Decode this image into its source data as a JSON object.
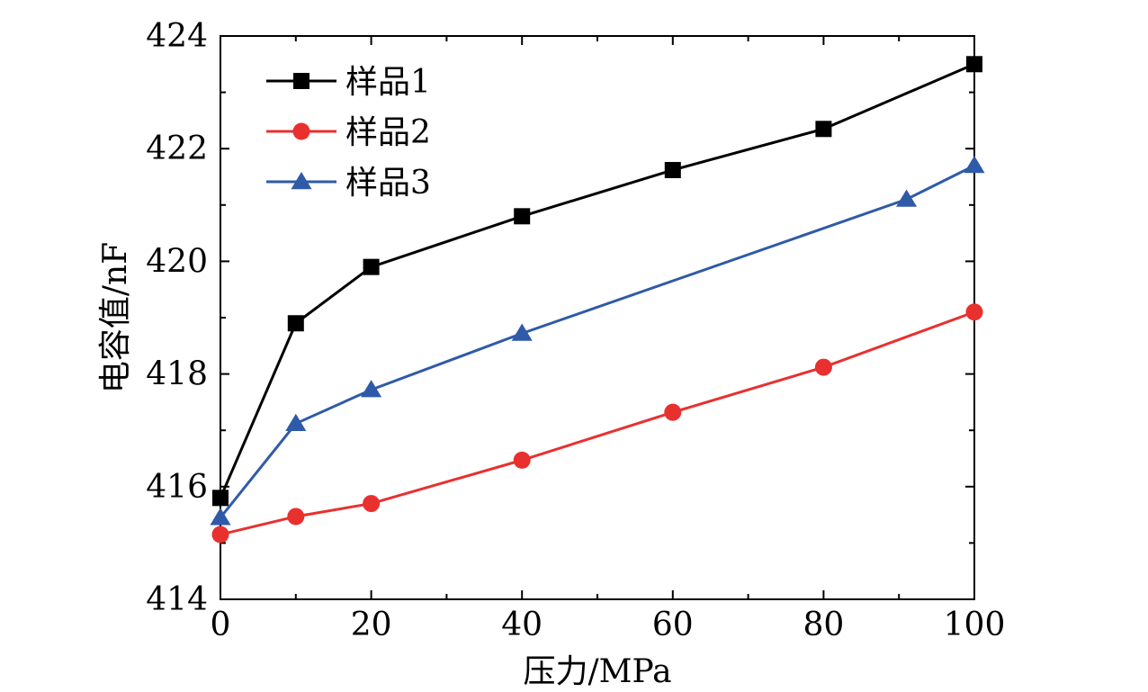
{
  "chart_data": {
    "type": "line",
    "title": "",
    "xlabel": "压力/MPa",
    "ylabel": "电容值/nF",
    "xlim": [
      0,
      100
    ],
    "ylim": [
      414,
      424
    ],
    "xticks": [
      0,
      20,
      40,
      60,
      80,
      100
    ],
    "yticks": [
      414,
      416,
      418,
      420,
      422,
      424
    ],
    "grid": false,
    "legend_position": "top-left",
    "series": [
      {
        "name": "样品1",
        "color": "#000000",
        "marker": "square",
        "x": [
          0,
          10,
          20,
          40,
          60,
          80,
          100
        ],
        "y": [
          415.8,
          418.9,
          419.9,
          420.8,
          421.62,
          422.35,
          423.5
        ]
      },
      {
        "name": "样品2",
        "color": "#e8302f",
        "marker": "circle",
        "x": [
          0,
          10,
          20,
          40,
          60,
          80,
          100
        ],
        "y": [
          415.15,
          415.47,
          415.7,
          416.47,
          417.32,
          418.12,
          419.1
        ]
      },
      {
        "name": "样品3",
        "color": "#2f5aa8",
        "marker": "triangle",
        "x": [
          0,
          10,
          20,
          40,
          91,
          100
        ],
        "y": [
          415.45,
          417.12,
          417.72,
          418.72,
          421.1,
          421.7
        ]
      }
    ]
  }
}
